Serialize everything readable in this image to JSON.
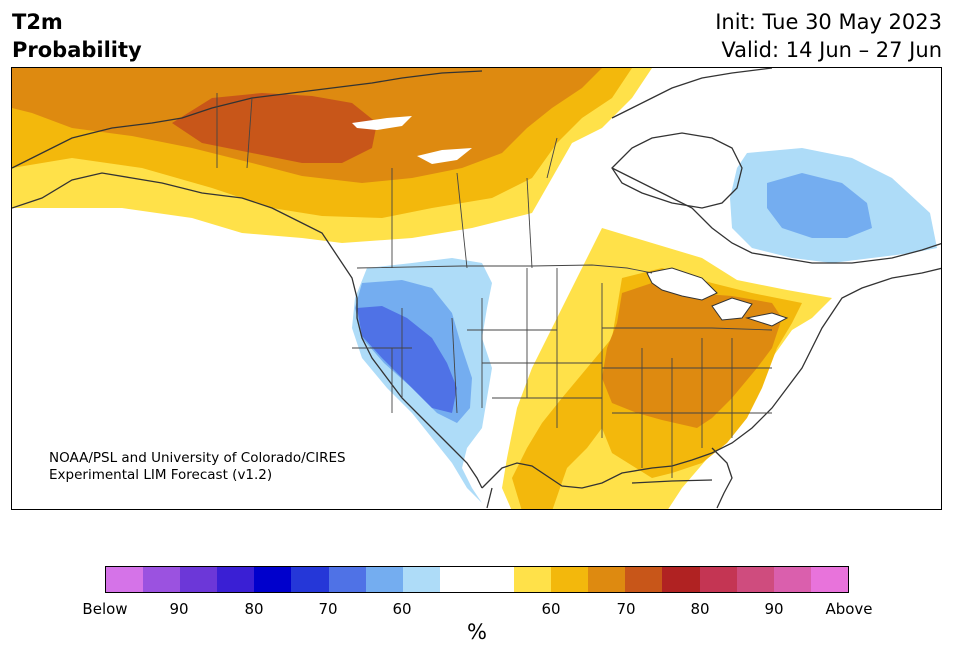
{
  "header": {
    "title_line1": "T2m",
    "title_line2": "Probability",
    "init": "Init: Tue 30 May 2023",
    "valid": "Valid: 14 Jun – 27 Jun"
  },
  "credit": {
    "line1": "NOAA/PSL and University of Colorado/CIRES",
    "line2": "Experimental LIM Forecast (v1.2)"
  },
  "colorbar": {
    "colors": [
      "#d573e8",
      "#9b52e0",
      "#6c37d8",
      "#3a1fd4",
      "#0000cc",
      "#2537d8",
      "#4f72e6",
      "#74adf0",
      "#aedcf8",
      "#ffffff",
      "#ffffff",
      "#ffe149",
      "#f3b80c",
      "#de8a10",
      "#c85619",
      "#b02222",
      "#c43553",
      "#cf4c7e",
      "#da5fad",
      "#e873db"
    ],
    "tick_labels": [
      "Below",
      "90",
      "80",
      "70",
      "60",
      "60",
      "70",
      "80",
      "90",
      "Above"
    ],
    "unit": "%"
  },
  "legend_colors": {
    "above_60": "#ffe149",
    "above_65": "#f3b80c",
    "above_70": "#de8a10",
    "above_75": "#c85619",
    "below_60": "#aedcf8",
    "below_65": "#74adf0",
    "below_70": "#4f72e6"
  }
}
